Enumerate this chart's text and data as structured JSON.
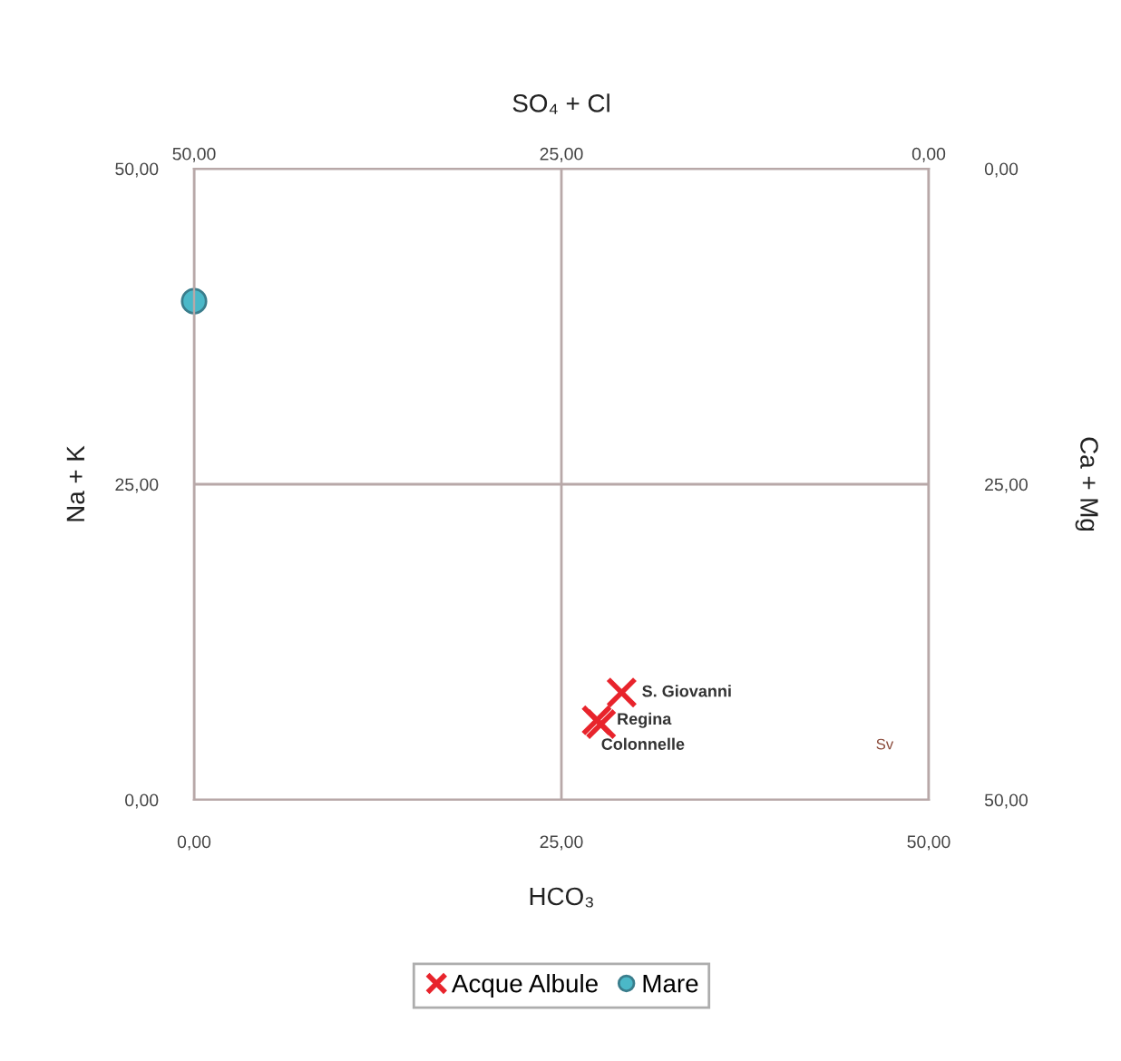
{
  "chart_data": {
    "type": "scatter",
    "xlabel": "HCO₃",
    "x2label": "SO₄ + Cl",
    "ylabel": "Na + K",
    "y2label": "Ca + Mg",
    "xlim": [
      0,
      50
    ],
    "xticks": [
      {
        "value": 0,
        "label": "0,00"
      },
      {
        "value": 25,
        "label": "25,00"
      },
      {
        "value": 50,
        "label": "50,00"
      }
    ],
    "x2lim": [
      50,
      0
    ],
    "x2ticks": [
      {
        "value": 50,
        "label": "50,00"
      },
      {
        "value": 25,
        "label": "25,00"
      },
      {
        "value": 0,
        "label": "0,00"
      }
    ],
    "ylim": [
      0,
      50
    ],
    "yticks": [
      {
        "value": 0,
        "label": "0,00"
      },
      {
        "value": 25,
        "label": "25,00"
      },
      {
        "value": 50,
        "label": "50,00"
      }
    ],
    "y2lim": [
      50,
      0
    ],
    "y2ticks": [
      {
        "value": 50,
        "label": "50,00"
      },
      {
        "value": 25,
        "label": "25,00"
      },
      {
        "value": 0,
        "label": "0,00"
      }
    ],
    "grid": true,
    "legend": "bottom",
    "series": [
      {
        "name": "Acque Albule",
        "color": "#e8242c",
        "marker": "cross",
        "x": [
          29.1,
          27.4,
          27.7
        ],
        "values": [
          8.5,
          6.3,
          6.0
        ]
      },
      {
        "name": "Mare",
        "color": "#4bb8c8",
        "marker": "circle",
        "x": [
          0
        ],
        "values": [
          39.5
        ]
      }
    ],
    "annotations": [
      {
        "text": "S. Giovanni",
        "x": 29.1,
        "y": 8.5
      },
      {
        "text": "Regina",
        "x": 27.4,
        "y": 6.3
      },
      {
        "text": "Colonnelle",
        "x": 27.7,
        "y": 6.0
      },
      "Sv"
    ]
  }
}
